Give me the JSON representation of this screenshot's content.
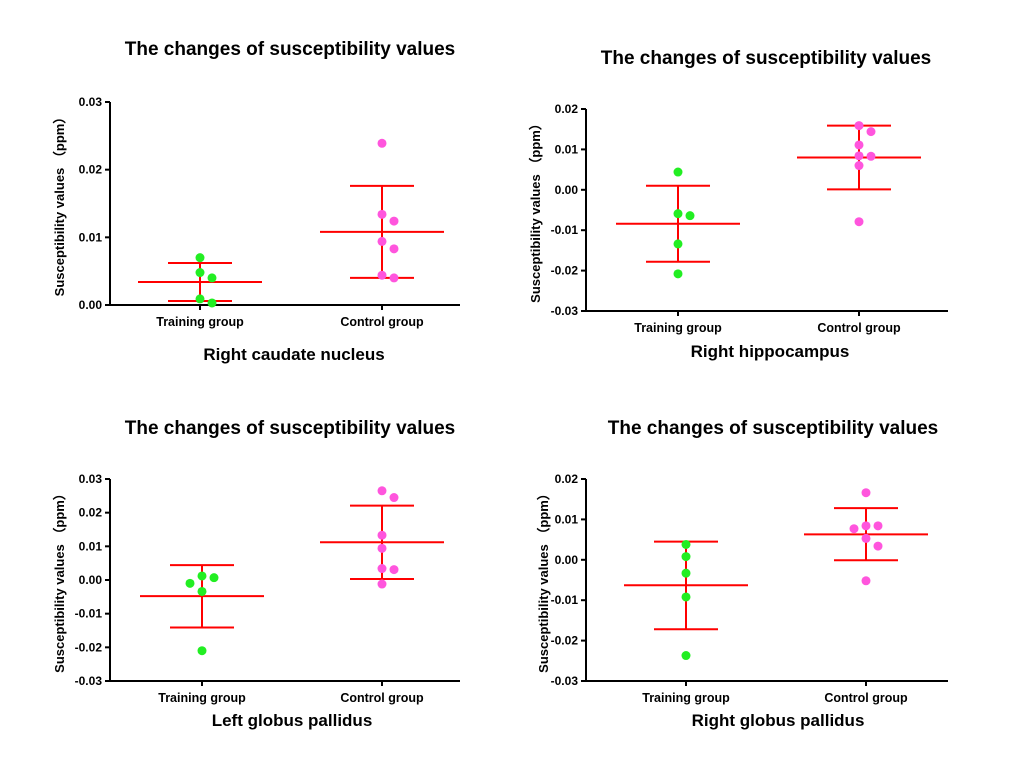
{
  "chart_data": [
    {
      "type": "scatter",
      "title": "The changes of susceptibility values",
      "xlabel": "Right caudate nucleus",
      "ylabel": "Susceptibility values （ppm）",
      "ylim": [
        0,
        0.03
      ],
      "yticks": [
        0.0,
        0.01,
        0.02,
        0.03
      ],
      "ytick_labels": [
        "0.00",
        "0.01",
        "0.02",
        "0.03"
      ],
      "categories": [
        "Training group",
        "Control group"
      ],
      "series": [
        {
          "name": "Training group",
          "color": "#22ee22",
          "values": [
            0.007,
            0.0048,
            0.004,
            0.0009,
            0.0003
          ],
          "mean": 0.0034,
          "sd_low": 0.0006,
          "sd_high": 0.0062
        },
        {
          "name": "Control group",
          "color": "#ff55dd",
          "values": [
            0.0239,
            0.0134,
            0.0124,
            0.0094,
            0.0083,
            0.0044,
            0.004
          ],
          "mean": 0.0108,
          "sd_low": 0.004,
          "sd_high": 0.0176
        }
      ]
    },
    {
      "type": "scatter",
      "title": "The changes of susceptibility values",
      "xlabel": "Right hippocampus",
      "ylabel": "Susceptibility values （ppm）",
      "ylim": [
        -0.03,
        0.02
      ],
      "yticks": [
        -0.03,
        -0.02,
        -0.01,
        0.0,
        0.01,
        0.02
      ],
      "ytick_labels": [
        "-0.03",
        "-0.02",
        "-0.01",
        "0.00",
        "0.01",
        "0.02"
      ],
      "categories": [
        "Training group",
        "Control group"
      ],
      "series": [
        {
          "name": "Training group",
          "color": "#22ee22",
          "values": [
            0.0044,
            -0.0059,
            -0.0064,
            -0.0134,
            -0.0208
          ],
          "mean": -0.0084,
          "sd_low": -0.0178,
          "sd_high": 0.001
        },
        {
          "name": "Control group",
          "color": "#ff55dd",
          "values": [
            0.0159,
            0.0144,
            0.0111,
            0.0084,
            0.0083,
            0.006,
            -0.0079
          ],
          "mean": 0.008,
          "sd_low": 0.0001,
          "sd_high": 0.0159
        }
      ]
    },
    {
      "type": "scatter",
      "title": "The changes of susceptibility values",
      "xlabel": "Left globus pallidus",
      "ylabel": "Susceptibility values （ppm）",
      "ylim": [
        -0.03,
        0.03
      ],
      "yticks": [
        -0.03,
        -0.02,
        -0.01,
        0.0,
        0.01,
        0.02,
        0.03
      ],
      "ytick_labels": [
        "-0.03",
        "-0.02",
        "-0.01",
        "0.00",
        "0.01",
        "0.02",
        "0.03"
      ],
      "categories": [
        "Training group",
        "Control group"
      ],
      "series": [
        {
          "name": "Training group",
          "color": "#22ee22",
          "values": [
            0.0012,
            0.0007,
            -0.001,
            -0.0034,
            -0.021
          ],
          "mean": -0.0048,
          "sd_low": -0.0141,
          "sd_high": 0.0044
        },
        {
          "name": "Control group",
          "color": "#ff55dd",
          "values": [
            0.0265,
            0.0245,
            0.0133,
            0.0094,
            0.0034,
            0.0031,
            -0.0012
          ],
          "mean": 0.0112,
          "sd_low": 0.0003,
          "sd_high": 0.0221
        }
      ]
    },
    {
      "type": "scatter",
      "title": "The changes of susceptibility values",
      "xlabel": "Right globus pallidus",
      "ylabel": "Susceptibility values （ppm）",
      "ylim": [
        -0.03,
        0.02
      ],
      "yticks": [
        -0.03,
        -0.02,
        -0.01,
        0.0,
        0.01,
        0.02
      ],
      "ytick_labels": [
        "-0.03",
        "-0.02",
        "-0.01",
        "0.00",
        "0.01",
        "0.02"
      ],
      "categories": [
        "Training group",
        "Control group"
      ],
      "series": [
        {
          "name": "Training group",
          "color": "#22ee22",
          "values": [
            0.0038,
            0.0008,
            -0.0033,
            -0.0092,
            -0.0237
          ],
          "mean": -0.0063,
          "sd_low": -0.0172,
          "sd_high": 0.0045
        },
        {
          "name": "Control group",
          "color": "#ff55dd",
          "values": [
            0.0166,
            0.0084,
            0.0084,
            0.0077,
            0.0053,
            0.0034,
            -0.0052
          ],
          "mean": 0.0063,
          "sd_low": -0.0001,
          "sd_high": 0.0128
        }
      ]
    }
  ]
}
